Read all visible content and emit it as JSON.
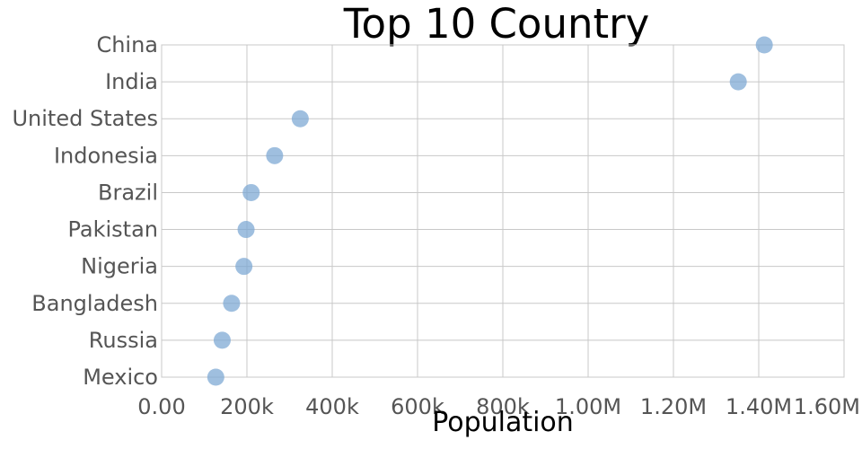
{
  "chart_data": {
    "type": "scatter",
    "title": "Top 10 Country",
    "xlabel": "Population",
    "ylabel": "",
    "xlim": [
      0,
      1600000
    ],
    "xticks": [
      {
        "value": 0,
        "label": "0.00"
      },
      {
        "value": 200000,
        "label": "200k"
      },
      {
        "value": 400000,
        "label": "400k"
      },
      {
        "value": 600000,
        "label": "600k"
      },
      {
        "value": 800000,
        "label": "800k"
      },
      {
        "value": 1000000,
        "label": "1.00M"
      },
      {
        "value": 1200000,
        "label": "1.20M"
      },
      {
        "value": 1400000,
        "label": "1.40M"
      },
      {
        "value": 1600000,
        "label": "1.60M"
      }
    ],
    "categories": [
      "China",
      "India",
      "United States",
      "Indonesia",
      "Brazil",
      "Pakistan",
      "Nigeria",
      "Bangladesh",
      "Russia",
      "Mexico"
    ],
    "values": [
      1413000,
      1352000,
      325000,
      265000,
      210000,
      198000,
      193000,
      164000,
      142000,
      127000
    ],
    "grid": true,
    "point_color": "#7aa6d2"
  }
}
